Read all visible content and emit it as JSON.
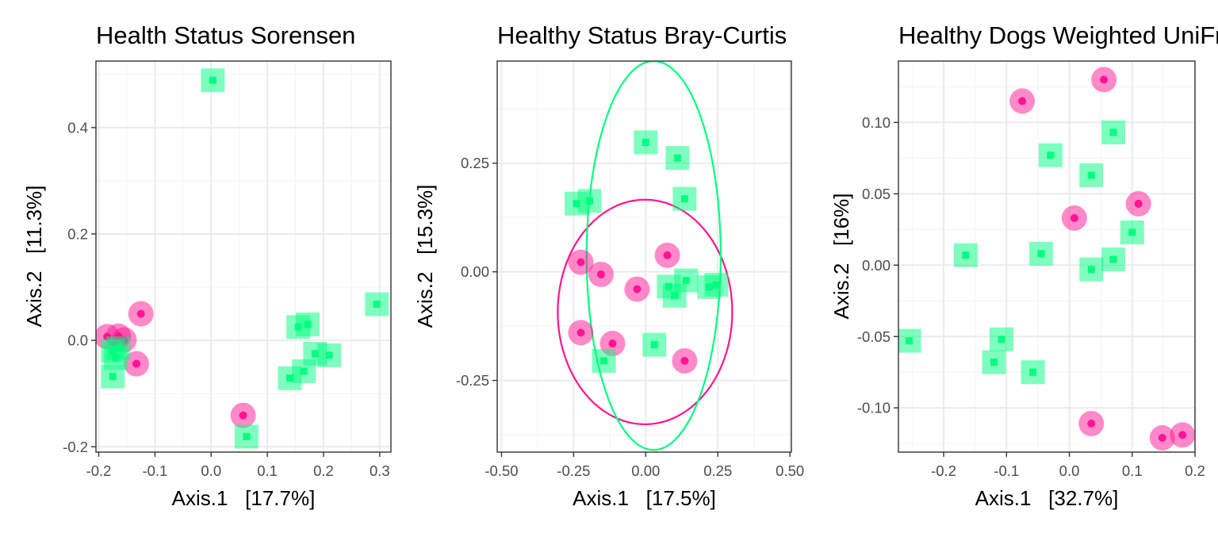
{
  "colors": {
    "unhealthy": "#ff1493",
    "healthy": "#00ff7f",
    "grid_major": "#ebebeb",
    "grid_minor": "#f5f5f5",
    "frame": "#333333"
  },
  "chart_data": [
    {
      "type": "scatter",
      "title": "Health Status Sorensen",
      "xlabel": "Axis.1   [17.7%]",
      "ylabel": "Axis.2   [11.3%]",
      "xlim": [
        -0.205,
        0.32
      ],
      "ylim": [
        -0.21,
        0.525
      ],
      "xticks": [
        -0.2,
        -0.1,
        0.0,
        0.1,
        0.2,
        0.3
      ],
      "xtick_labels": [
        "-0.2",
        "-0.1",
        "0.0",
        "0.1",
        "0.2",
        "0.3"
      ],
      "yticks": [
        -0.2,
        0.0,
        0.2,
        0.4
      ],
      "ytick_labels": [
        "-0.2",
        "0.0",
        "0.2",
        "0.4"
      ],
      "grid": true,
      "series": [
        {
          "color": "#ff1493",
          "marker": "circle",
          "points": [
            [
              -0.185,
              0.007
            ],
            [
              -0.165,
              0.008
            ],
            [
              -0.155,
              0.001
            ],
            [
              -0.125,
              0.05
            ],
            [
              -0.133,
              -0.044
            ],
            [
              0.057,
              -0.141
            ]
          ]
        },
        {
          "color": "#00ff7f",
          "marker": "square",
          "points": [
            [
              0.003,
              0.489
            ],
            [
              -0.175,
              -0.02
            ],
            [
              -0.17,
              -0.033
            ],
            [
              -0.165,
              -0.015
            ],
            [
              -0.175,
              -0.068
            ],
            [
              0.155,
              0.025
            ],
            [
              0.172,
              0.03
            ],
            [
              0.185,
              -0.025
            ],
            [
              0.21,
              -0.028
            ],
            [
              0.14,
              -0.071
            ],
            [
              0.165,
              -0.058
            ],
            [
              0.295,
              0.068
            ],
            [
              0.063,
              -0.181
            ]
          ]
        }
      ]
    },
    {
      "type": "scatter",
      "title": "Healthy Status Bray-Curtis",
      "xlabel": "Axis.1   [17.5%]",
      "ylabel": "Axis.2   [15.3%]",
      "xlim": [
        -0.515,
        0.505
      ],
      "ylim": [
        -0.415,
        0.485
      ],
      "xticks": [
        -0.5,
        -0.25,
        0.0,
        0.25,
        0.5
      ],
      "xtick_labels": [
        "-0.50",
        "-0.25",
        "0.00",
        "0.25",
        "0.50"
      ],
      "yticks": [
        -0.25,
        0.0,
        0.25
      ],
      "ytick_labels": [
        "-0.25",
        "0.00",
        "0.25"
      ],
      "grid": true,
      "series": [
        {
          "color": "#ff1493",
          "marker": "circle",
          "points": [
            [
              -0.225,
              0.022
            ],
            [
              -0.155,
              -0.006
            ],
            [
              -0.03,
              -0.04
            ],
            [
              0.075,
              0.038
            ],
            [
              -0.225,
              -0.14
            ],
            [
              -0.115,
              -0.165
            ],
            [
              0.135,
              -0.205
            ]
          ]
        },
        {
          "color": "#00ff7f",
          "marker": "square",
          "points": [
            [
              0.0,
              0.298
            ],
            [
              0.11,
              0.262
            ],
            [
              0.135,
              0.168
            ],
            [
              -0.24,
              0.157
            ],
            [
              -0.195,
              0.163
            ],
            [
              0.08,
              -0.034
            ],
            [
              0.14,
              -0.02
            ],
            [
              0.1,
              -0.055
            ],
            [
              0.22,
              -0.035
            ],
            [
              0.245,
              -0.03
            ],
            [
              0.03,
              -0.168
            ],
            [
              -0.145,
              -0.205
            ]
          ]
        }
      ],
      "ellipses": [
        {
          "color": "#ff1493",
          "cx": -0.0025,
          "cy": -0.0925,
          "rx": 0.3025,
          "ry": 0.2585
        },
        {
          "color": "#00ff7f",
          "cx": 0.0275,
          "cy": 0.0375,
          "rx": 0.2325,
          "ry": 0.4475
        }
      ]
    },
    {
      "type": "scatter",
      "title": "Healthy Dogs Weighted UniFrac",
      "xlabel": "Axis.1   [32.7%]",
      "ylabel": "Axis.2   [16%]",
      "xlim": [
        -0.272,
        0.2
      ],
      "ylim": [
        -0.131,
        0.143
      ],
      "xticks": [
        -0.2,
        -0.1,
        0.0,
        0.1,
        0.2
      ],
      "xtick_labels": [
        "-0.2",
        "-0.1",
        "0.0",
        "0.1",
        "0.2"
      ],
      "yticks": [
        -0.1,
        -0.05,
        0.0,
        0.05,
        0.1
      ],
      "ytick_labels": [
        "-0.10",
        "-0.05",
        "0.00",
        "0.05",
        "0.10"
      ],
      "grid": true,
      "series": [
        {
          "color": "#ff1493",
          "marker": "circle",
          "points": [
            [
              -0.075,
              0.115
            ],
            [
              0.055,
              0.13
            ],
            [
              0.11,
              0.043
            ],
            [
              0.008,
              0.033
            ],
            [
              0.035,
              -0.111
            ],
            [
              0.148,
              -0.121
            ],
            [
              0.18,
              -0.119
            ]
          ]
        },
        {
          "color": "#00ff7f",
          "marker": "square",
          "points": [
            [
              0.07,
              0.093
            ],
            [
              -0.03,
              0.077
            ],
            [
              0.035,
              0.063
            ],
            [
              0.1,
              0.023
            ],
            [
              -0.165,
              0.007
            ],
            [
              -0.045,
              0.008
            ],
            [
              0.07,
              0.004
            ],
            [
              0.035,
              -0.003
            ],
            [
              -0.255,
              -0.053
            ],
            [
              -0.108,
              -0.052
            ],
            [
              -0.12,
              -0.068
            ],
            [
              -0.058,
              -0.075
            ]
          ]
        }
      ]
    }
  ]
}
